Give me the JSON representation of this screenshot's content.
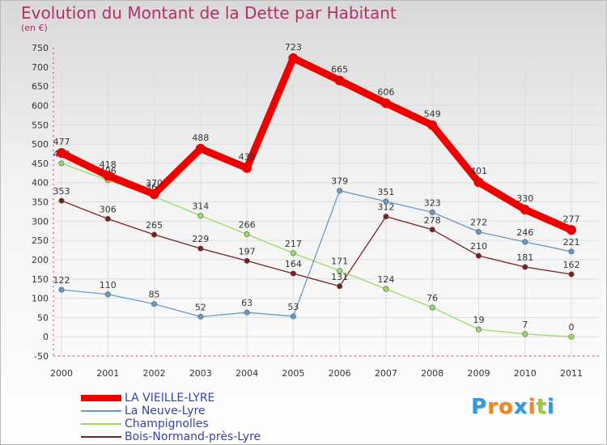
{
  "chart_data": {
    "type": "line",
    "title": "Evolution du Montant de la Dette par Habitant",
    "subtitle": "(en €)",
    "categories": [
      "2000",
      "2001",
      "2002",
      "2003",
      "2004",
      "2005",
      "2006",
      "2007",
      "2008",
      "2009",
      "2010",
      "2011"
    ],
    "ylim": [
      -50,
      750
    ],
    "yticks": [
      -50,
      0,
      50,
      100,
      150,
      200,
      250,
      300,
      350,
      400,
      450,
      500,
      550,
      600,
      650,
      700,
      750
    ],
    "grid": true,
    "legend_position": "bottom-left",
    "series": [
      {
        "name": "LA VIEILLE-LYRE",
        "color": "#ee0000",
        "values": [
          477,
          418,
          370,
          488,
          438,
          723,
          665,
          606,
          549,
          401,
          330,
          277
        ]
      },
      {
        "name": "La Neuve-Lyre",
        "color": "#6699cc",
        "values": [
          122,
          110,
          85,
          52,
          63,
          53,
          379,
          351,
          323,
          272,
          246,
          221
        ]
      },
      {
        "name": "Champignolles",
        "color": "#99dd66",
        "values": [
          450,
          406,
          364,
          314,
          266,
          217,
          171,
          124,
          76,
          19,
          7,
          0
        ]
      },
      {
        "name": "Bois-Normand-près-Lyre",
        "color": "#772222",
        "values": [
          353,
          306,
          265,
          229,
          197,
          164,
          131,
          312,
          278,
          210,
          181,
          162
        ]
      }
    ]
  },
  "brand": {
    "logo_letters": [
      "P",
      "r",
      "o",
      "x",
      "i",
      "t",
      "i"
    ],
    "logo_colors": [
      "#3399dd",
      "#ee8822",
      "#ee8822",
      "#3399dd",
      "#ee8822",
      "#99cc33",
      "#3399dd"
    ]
  }
}
